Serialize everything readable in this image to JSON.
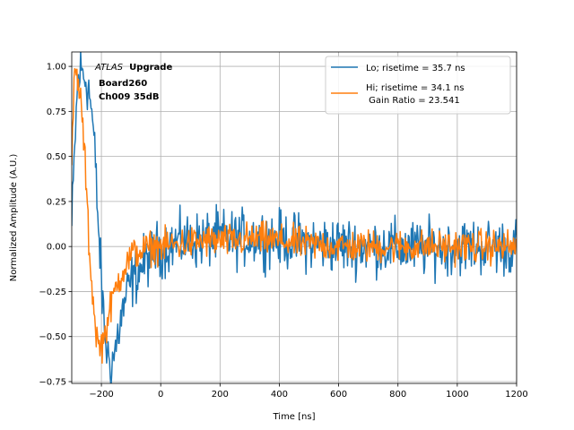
{
  "chart_data": {
    "type": "line",
    "title": "",
    "xlabel": "Time [ns]",
    "ylabel": "Normalized Amplitude (A.U.)",
    "xlim": [
      -300,
      1200
    ],
    "ylim": [
      -0.76,
      1.08
    ],
    "grid": true,
    "legend_position": "top-right",
    "x_ticks": [
      -200,
      0,
      200,
      400,
      600,
      800,
      1000,
      1200
    ],
    "x_tick_labels": [
      "−200",
      "0",
      "200",
      "400",
      "600",
      "800",
      "1000",
      "1200"
    ],
    "y_ticks": [
      -0.75,
      -0.5,
      -0.25,
      0.0,
      0.25,
      0.5,
      0.75,
      1.0
    ],
    "y_tick_labels": [
      "−0.75",
      "−0.50",
      "−0.25",
      "0.00",
      "0.25",
      "0.50",
      "0.75",
      "1.00"
    ],
    "annotation": {
      "italic": "ATLAS",
      "bold": "Upgrade",
      "line2": "Board260",
      "line3": "Ch009 35dB"
    },
    "series": [
      {
        "name": "Lo; risetime = 35.7 ns",
        "color": "#1f77b4",
        "x": [
          -300,
          -290,
          -280,
          -270,
          -260,
          -250,
          -240,
          -230,
          -220,
          -210,
          -200,
          -190,
          -180,
          -170,
          -160,
          -150,
          -140,
          -130,
          -120,
          -110,
          -100,
          -80,
          -60,
          -40,
          -20,
          0,
          50,
          100,
          150,
          200,
          250,
          300,
          350,
          400,
          450,
          500,
          550,
          600,
          650,
          700,
          750,
          800,
          850,
          900,
          950,
          1000,
          1050,
          1100,
          1150,
          1200
        ],
        "values": [
          0.1,
          0.55,
          0.9,
          0.98,
          0.95,
          0.92,
          0.85,
          0.7,
          0.45,
          0.1,
          -0.2,
          -0.45,
          -0.6,
          -0.65,
          -0.62,
          -0.55,
          -0.45,
          -0.38,
          -0.3,
          -0.25,
          -0.2,
          -0.15,
          -0.1,
          -0.06,
          -0.03,
          -0.01,
          0.02,
          0.03,
          0.04,
          0.05,
          0.04,
          0.05,
          0.05,
          0.04,
          0.03,
          0.02,
          0.01,
          0.01,
          0.0,
          0.0,
          0.0,
          -0.01,
          -0.01,
          -0.01,
          0.0,
          0.0,
          0.0,
          0.0,
          0.0,
          0.0
        ],
        "noise": 0.11
      },
      {
        "name": "Hi; risetime = 34.1 ns\n Gain Ratio = 23.541",
        "color": "#ff7f0e",
        "x": [
          -300,
          -290,
          -280,
          -270,
          -260,
          -250,
          -240,
          -230,
          -220,
          -210,
          -200,
          -190,
          -180,
          -170,
          -160,
          -150,
          -140,
          -130,
          -120,
          -110,
          -100,
          -80,
          -60,
          -40,
          -20,
          0,
          50,
          100,
          150,
          200,
          250,
          300,
          350,
          400,
          450,
          500,
          550,
          600,
          650,
          700,
          750,
          800,
          850,
          900,
          950,
          1000,
          1050,
          1100,
          1150,
          1200
        ],
        "values": [
          0.5,
          0.97,
          0.92,
          0.82,
          0.6,
          0.3,
          -0.05,
          -0.25,
          -0.45,
          -0.55,
          -0.55,
          -0.5,
          -0.42,
          -0.35,
          -0.28,
          -0.22,
          -0.18,
          -0.14,
          -0.11,
          -0.08,
          -0.05,
          -0.03,
          -0.02,
          -0.01,
          0.0,
          0.0,
          0.01,
          0.02,
          0.03,
          0.03,
          0.03,
          0.04,
          0.04,
          0.03,
          0.02,
          0.01,
          0.01,
          0.0,
          0.0,
          0.0,
          0.0,
          0.0,
          0.0,
          0.0,
          0.0,
          0.0,
          0.0,
          0.0,
          0.0,
          0.0
        ],
        "noise": 0.065
      }
    ]
  }
}
